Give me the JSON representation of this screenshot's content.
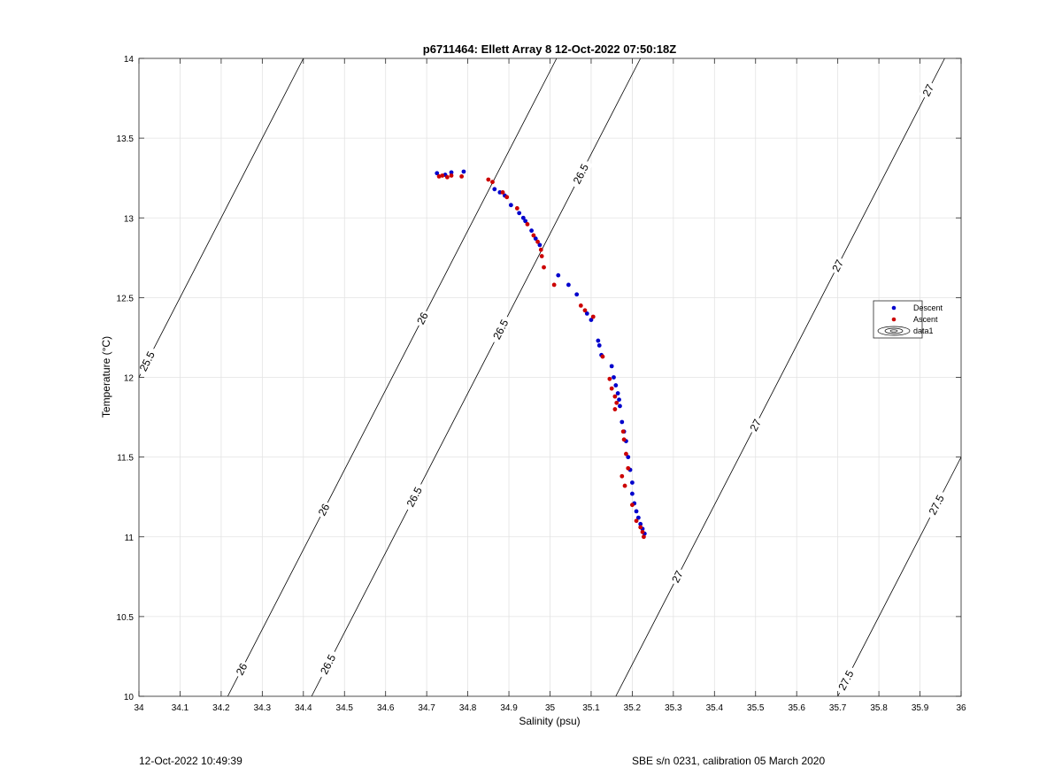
{
  "footer": {
    "timestamp": "12-Oct-2022 10:49:39",
    "calibration": "SBE s/n 0231, calibration 05 March 2020"
  },
  "chart_data": {
    "type": "scatter",
    "title": "p6711464: Ellett Array 8 12-Oct-2022 07:50:18Z",
    "xlabel": "Salinity (psu)",
    "ylabel": "Temperature (°C)",
    "xlim": [
      34,
      36
    ],
    "ylim": [
      10,
      14
    ],
    "grid": true,
    "xticks": [
      34,
      34.1,
      34.2,
      34.3,
      34.4,
      34.5,
      34.6,
      34.7,
      34.8,
      34.9,
      35,
      35.1,
      35.2,
      35.3,
      35.4,
      35.5,
      35.6,
      35.7,
      35.8,
      35.9,
      36
    ],
    "xtick_labels": [
      "34",
      "34.1",
      "34.2",
      "34.3",
      "34.4",
      "34.5",
      "34.6",
      "34.7",
      "34.8",
      "34.9",
      "35",
      "35.1",
      "35.2",
      "35.3",
      "35.4",
      "35.5",
      "35.6",
      "35.7",
      "35.8",
      "35.9",
      "36"
    ],
    "yticks": [
      10,
      10.5,
      11,
      11.5,
      12,
      12.5,
      13,
      13.5,
      14
    ],
    "ytick_labels": [
      "10",
      "10.5",
      "11",
      "11.5",
      "12",
      "12.5",
      "13",
      "13.5",
      "14"
    ],
    "legend": {
      "placement": "right",
      "entries": [
        "Descent",
        "Ascent",
        "data1"
      ]
    },
    "colors": {
      "descent": "#0000cc",
      "ascent": "#cc0000",
      "contour": "#000000",
      "grid": "#e3e3e3"
    },
    "series": [
      {
        "name": "Descent",
        "points": [
          [
            34.725,
            13.28
          ],
          [
            34.745,
            13.27
          ],
          [
            34.76,
            13.285
          ],
          [
            34.79,
            13.29
          ],
          [
            34.865,
            13.18
          ],
          [
            34.878,
            13.16
          ],
          [
            34.89,
            13.14
          ],
          [
            34.905,
            13.08
          ],
          [
            34.925,
            13.03
          ],
          [
            34.935,
            13.0
          ],
          [
            34.94,
            12.98
          ],
          [
            34.955,
            12.92
          ],
          [
            34.965,
            12.87
          ],
          [
            34.975,
            12.83
          ],
          [
            35.02,
            12.64
          ],
          [
            35.045,
            12.58
          ],
          [
            35.065,
            12.52
          ],
          [
            35.09,
            12.4
          ],
          [
            35.1,
            12.36
          ],
          [
            35.117,
            12.23
          ],
          [
            35.12,
            12.2
          ],
          [
            35.125,
            12.14
          ],
          [
            35.15,
            12.07
          ],
          [
            35.155,
            12.0
          ],
          [
            35.16,
            11.95
          ],
          [
            35.165,
            11.9
          ],
          [
            35.168,
            11.86
          ],
          [
            35.17,
            11.82
          ],
          [
            35.175,
            11.72
          ],
          [
            35.18,
            11.66
          ],
          [
            35.185,
            11.6
          ],
          [
            35.19,
            11.5
          ],
          [
            35.195,
            11.42
          ],
          [
            35.2,
            11.34
          ],
          [
            35.2,
            11.27
          ],
          [
            35.205,
            11.21
          ],
          [
            35.21,
            11.16
          ],
          [
            35.215,
            11.12
          ],
          [
            35.22,
            11.08
          ],
          [
            35.225,
            11.05
          ],
          [
            35.23,
            11.02
          ]
        ]
      },
      {
        "name": "Ascent",
        "points": [
          [
            34.73,
            13.26
          ],
          [
            34.738,
            13.265
          ],
          [
            34.75,
            13.255
          ],
          [
            34.76,
            13.265
          ],
          [
            34.785,
            13.26
          ],
          [
            34.85,
            13.24
          ],
          [
            34.86,
            13.225
          ],
          [
            34.885,
            13.16
          ],
          [
            34.895,
            13.13
          ],
          [
            34.92,
            13.06
          ],
          [
            34.945,
            12.96
          ],
          [
            34.96,
            12.89
          ],
          [
            34.97,
            12.85
          ],
          [
            34.978,
            12.8
          ],
          [
            34.98,
            12.76
          ],
          [
            34.985,
            12.69
          ],
          [
            35.01,
            12.58
          ],
          [
            35.075,
            12.45
          ],
          [
            35.085,
            12.42
          ],
          [
            35.105,
            12.38
          ],
          [
            35.128,
            12.13
          ],
          [
            35.145,
            11.99
          ],
          [
            35.15,
            11.93
          ],
          [
            35.158,
            11.88
          ],
          [
            35.162,
            11.84
          ],
          [
            35.158,
            11.8
          ],
          [
            35.178,
            11.66
          ],
          [
            35.18,
            11.61
          ],
          [
            35.185,
            11.52
          ],
          [
            35.19,
            11.43
          ],
          [
            35.175,
            11.38
          ],
          [
            35.182,
            11.32
          ],
          [
            35.2,
            11.2
          ],
          [
            35.21,
            11.1
          ],
          [
            35.22,
            11.06
          ],
          [
            35.225,
            11.03
          ],
          [
            35.228,
            11.0
          ]
        ]
      }
    ],
    "contours": [
      {
        "level": 25.5,
        "slope": 5.0,
        "intercept": -158.0,
        "labels": [
          {
            "text": "25.5",
            "x": 34.02
          }
        ]
      },
      {
        "level": 26,
        "slope": 5.0,
        "intercept": -161.08,
        "labels": [
          {
            "text": "26",
            "x": 34.02
          },
          {
            "text": "26",
            "x": 34.25
          },
          {
            "text": "26",
            "x": 34.45
          },
          {
            "text": "26",
            "x": 34.69
          }
        ]
      },
      {
        "level": 26.5,
        "slope": 5.0,
        "intercept": -162.1,
        "labels": [
          {
            "text": "26.5",
            "x": 34.46
          },
          {
            "text": "26.5",
            "x": 34.67
          },
          {
            "text": "26.5",
            "x": 34.88
          },
          {
            "text": "26.5",
            "x": 35.075
          },
          {
            "text": "26.5",
            "x": 35.3
          }
        ]
      },
      {
        "level": 27,
        "slope": 5.0,
        "intercept": -165.8,
        "labels": [
          {
            "text": "27",
            "x": 35.085
          },
          {
            "text": "27",
            "x": 35.31
          },
          {
            "text": "27",
            "x": 35.5
          },
          {
            "text": "27",
            "x": 35.7
          },
          {
            "text": "27",
            "x": 35.92
          }
        ]
      },
      {
        "level": 27.5,
        "slope": 5.0,
        "intercept": -168.5,
        "labels": [
          {
            "text": "27.5",
            "x": 35.72
          },
          {
            "text": "27.5",
            "x": 35.94
          }
        ]
      }
    ]
  }
}
